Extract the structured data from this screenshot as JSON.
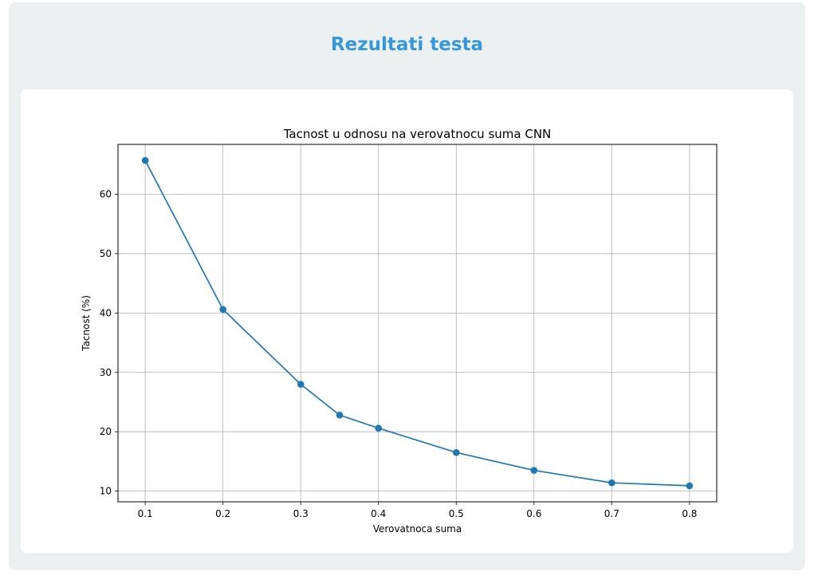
{
  "page": {
    "title": "Rezultati testa"
  },
  "chart_data": {
    "type": "line",
    "title": "Tacnost u odnosu na verovatnocu suma CNN",
    "xlabel": "Verovatnoca suma",
    "ylabel": "Tacnost (%)",
    "x": [
      0.1,
      0.2,
      0.3,
      0.35,
      0.4,
      0.5,
      0.6,
      0.7,
      0.8
    ],
    "series": [
      {
        "values": [
          65.7,
          40.6,
          28.0,
          22.8,
          20.6,
          16.5,
          13.5,
          11.4,
          10.9
        ]
      }
    ],
    "xlim": [
      0.065,
      0.835
    ],
    "ylim": [
      8.2,
      68.4
    ],
    "xticks": [
      0.1,
      0.2,
      0.3,
      0.4,
      0.5,
      0.6,
      0.7,
      0.8
    ],
    "xtick_labels": [
      "0.1",
      "0.2",
      "0.3",
      "0.4",
      "0.5",
      "0.6",
      "0.7",
      "0.8"
    ],
    "yticks": [
      10,
      20,
      30,
      40,
      50,
      60
    ],
    "ytick_labels": [
      "10",
      "20",
      "30",
      "40",
      "50",
      "60"
    ],
    "grid": true,
    "line_color": "#1f77b4",
    "marker": "circle"
  }
}
